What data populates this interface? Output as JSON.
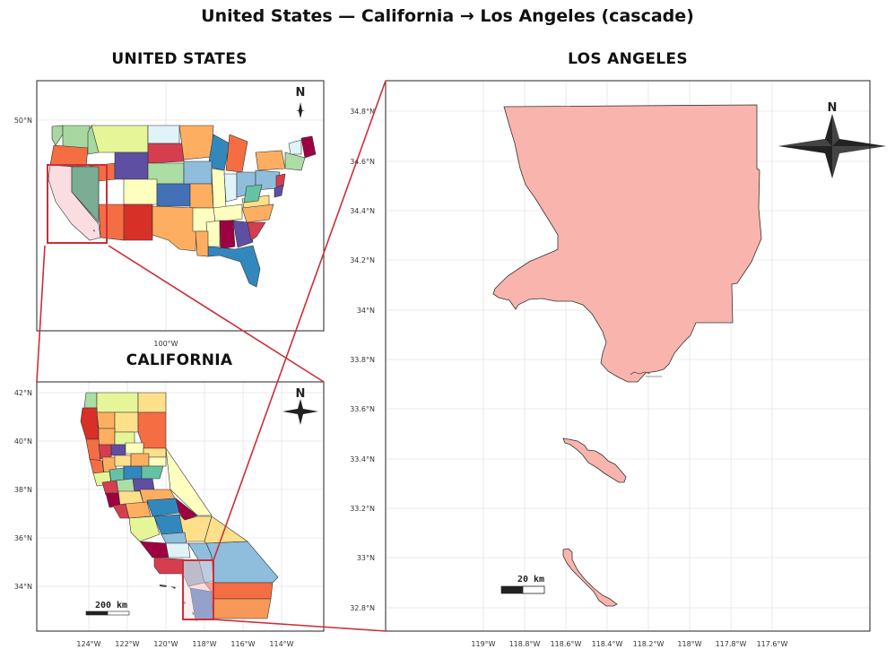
{
  "figure": {
    "title": "United States — California → Los Angeles (cascade)"
  },
  "panels": {
    "us": {
      "title": "UNITED STATES",
      "north": "N",
      "lat_ticks": [
        "50°N"
      ],
      "lon_ticks": [
        "100°W"
      ]
    },
    "ca": {
      "title": "CALIFORNIA",
      "north": "N",
      "scale": "200 km",
      "lat_ticks": [
        "42°N",
        "40°N",
        "38°N",
        "36°N",
        "34°N"
      ],
      "lon_ticks": [
        "124°W",
        "122°W",
        "120°W",
        "118°W",
        "116°W",
        "114°W"
      ]
    },
    "la": {
      "title": "LOS ANGELES",
      "north": "N",
      "scale": "20 km",
      "lat_ticks": [
        "34.8°N",
        "34.6°N",
        "34.4°N",
        "34.2°N",
        "34°N",
        "33.8°N",
        "33.6°N",
        "33.4°N",
        "33.2°N",
        "33°N",
        "32.8°N"
      ],
      "lon_ticks": [
        "119°W",
        "118.8°W",
        "118.6°W",
        "118.4°W",
        "118.2°W",
        "118°W",
        "117.8°W",
        "117.6°W"
      ]
    }
  },
  "colors": {
    "highlight": "#cc2e3a",
    "highlight_fill": "#f9dde1",
    "la_fill": "#f8b4ad"
  }
}
